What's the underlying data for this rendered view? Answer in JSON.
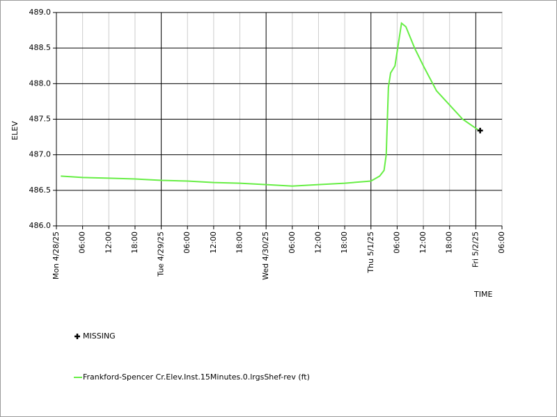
{
  "chart_data": {
    "type": "line",
    "x_label": "TIME",
    "y_label": "ELEV",
    "xlim": [
      "2025-04-28 00:00",
      "2025-05-02 06:00"
    ],
    "xticks": [
      {
        "value": "2025-04-28 00:00",
        "label": "Mon 4/28/25"
      },
      {
        "value": "2025-04-28 06:00",
        "label": "06:00"
      },
      {
        "value": "2025-04-28 12:00",
        "label": "12:00"
      },
      {
        "value": "2025-04-28 18:00",
        "label": "18:00"
      },
      {
        "value": "2025-04-29 00:00",
        "label": "Tue 4/29/25"
      },
      {
        "value": "2025-04-29 06:00",
        "label": "06:00"
      },
      {
        "value": "2025-04-29 12:00",
        "label": "12:00"
      },
      {
        "value": "2025-04-29 18:00",
        "label": "18:00"
      },
      {
        "value": "2025-04-30 00:00",
        "label": "Wed 4/30/25"
      },
      {
        "value": "2025-04-30 06:00",
        "label": "06:00"
      },
      {
        "value": "2025-04-30 12:00",
        "label": "12:00"
      },
      {
        "value": "2025-04-30 18:00",
        "label": "18:00"
      },
      {
        "value": "2025-05-01 00:00",
        "label": "Thu 5/1/25"
      },
      {
        "value": "2025-05-01 06:00",
        "label": "06:00"
      },
      {
        "value": "2025-05-01 12:00",
        "label": "12:00"
      },
      {
        "value": "2025-05-01 18:00",
        "label": "18:00"
      },
      {
        "value": "2025-05-02 00:00",
        "label": "Fri 5/2/25"
      },
      {
        "value": "2025-05-02 06:00",
        "label": "06:00"
      }
    ],
    "ylim": [
      486.0,
      489.0
    ],
    "yticks": [
      {
        "value": 486,
        "label": "486.0"
      },
      486.5,
      {
        "value": 487,
        "label": "487.0"
      },
      487.5,
      {
        "value": 488,
        "label": "488.0"
      },
      488.5,
      {
        "value": 489,
        "label": "489.0"
      }
    ],
    "grid": true,
    "series": [
      {
        "name": "MISSING",
        "type": "scatter",
        "color": "#000000",
        "x": [
          "2025-05-02 01:00"
        ],
        "values": [
          487.34
        ]
      },
      {
        "name": "Frankford-Spencer Cr.Elev.Inst.15Minutes.0.lrgsShef-rev (ft)",
        "type": "line",
        "color": "#66ee44",
        "x": [
          "2025-04-28 01:00",
          "2025-04-28 06:00",
          "2025-04-28 12:00",
          "2025-04-28 18:00",
          "2025-04-29 00:00",
          "2025-04-29 06:00",
          "2025-04-29 12:00",
          "2025-04-29 18:00",
          "2025-04-30 00:00",
          "2025-04-30 06:00",
          "2025-04-30 12:00",
          "2025-04-30 18:00",
          "2025-05-01 00:00",
          "2025-05-01 02:00",
          "2025-05-01 03:00",
          "2025-05-01 03:30",
          "2025-05-01 04:00",
          "2025-05-01 04:30",
          "2025-05-01 05:30",
          "2025-05-01 07:00",
          "2025-05-01 08:00",
          "2025-05-01 10:00",
          "2025-05-01 12:00",
          "2025-05-01 15:00",
          "2025-05-01 18:00",
          "2025-05-01 21:00",
          "2025-05-02 01:00"
        ],
        "values": [
          486.7,
          486.68,
          486.67,
          486.66,
          486.64,
          486.63,
          486.61,
          486.6,
          486.58,
          486.56,
          486.58,
          486.6,
          486.63,
          486.7,
          486.78,
          487.0,
          487.95,
          488.15,
          488.25,
          488.85,
          488.8,
          488.5,
          488.25,
          487.9,
          487.7,
          487.5,
          487.33
        ]
      }
    ]
  }
}
